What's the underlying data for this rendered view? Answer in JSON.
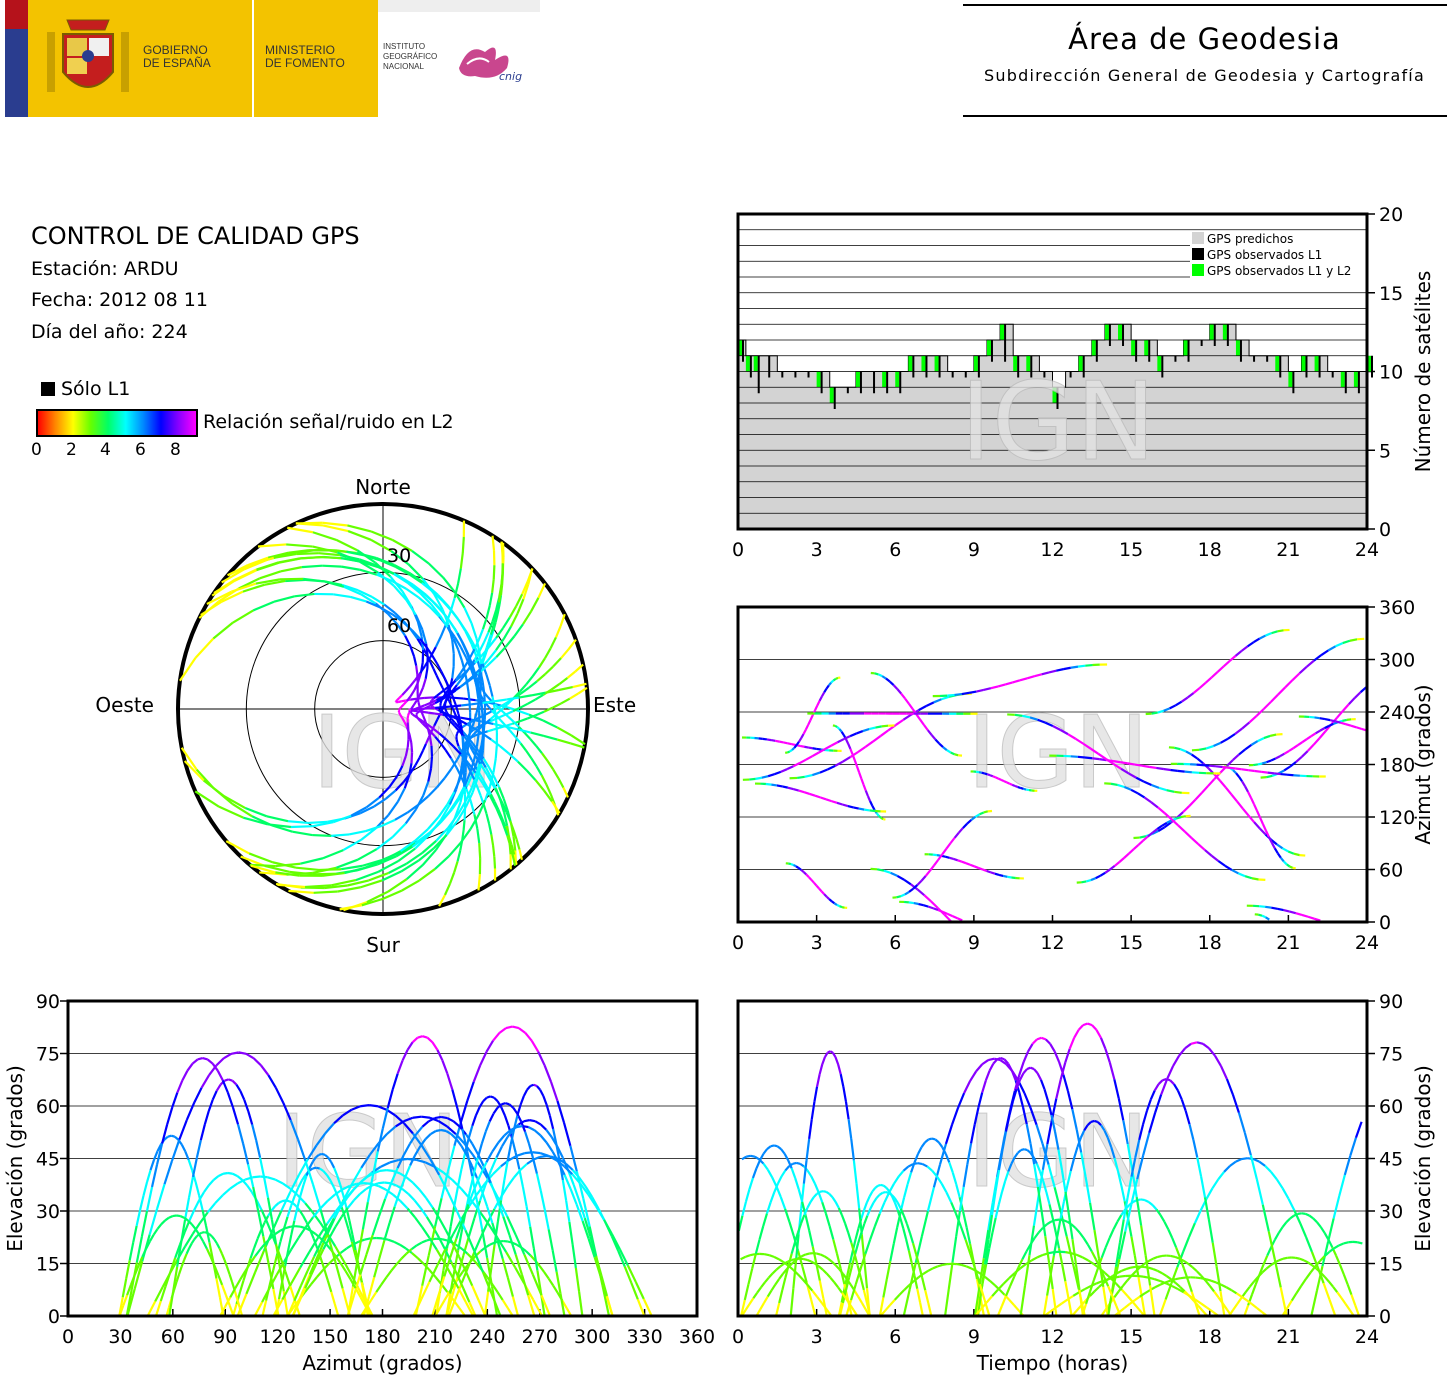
{
  "header": {
    "gov_line1": "GOBIERNO",
    "gov_line2": "DE ESPAÑA",
    "min_line1": "MINISTERIO",
    "min_line2": "DE FOMENTO",
    "inst_line1": "INSTITUTO",
    "inst_line2": "GEOGRÁFICO",
    "inst_line3": "NACIONAL",
    "cnig": "cnig",
    "title": "Área de Geodesia",
    "subtitle": "Subdirección General de Geodesia y Cartografía"
  },
  "info": {
    "title": "CONTROL DE CALIDAD GPS",
    "station": "Estación: ARDU",
    "date": "Fecha: 2012 08 11",
    "doy": "Día del año: 224",
    "solo_l1": "Sólo L1",
    "snr_label": "Relación señal/ruido en L2",
    "scale_ticks": [
      "0",
      "2",
      "4",
      "6",
      "8"
    ]
  },
  "colors": {
    "predicted": "#d3d3d3",
    "observed_l1": "#000000",
    "observed_l1_l2": "#00ff00",
    "snr_scale": [
      "#ff0000",
      "#ff8800",
      "#ffff00",
      "#66ff00",
      "#00ff66",
      "#00ffff",
      "#0088ff",
      "#0000ff",
      "#8800ff",
      "#ff00ff"
    ]
  },
  "watermark": "IGN",
  "chart_data": [
    {
      "type": "area",
      "id": "satellite_count",
      "xlabel": "",
      "ylabel": "Número de satélites",
      "xlim": [
        0,
        24
      ],
      "ylim": [
        0,
        20
      ],
      "xticks": [
        "0",
        "3",
        "6",
        "9",
        "12",
        "15",
        "18",
        "21",
        "24"
      ],
      "yticks": [
        "0",
        "5",
        "10",
        "15",
        "20"
      ],
      "legend": [
        "GPS predichos",
        "GPS observados L1",
        "GPS observados L1 y L2"
      ],
      "legend_position": "top-right",
      "x": [
        0,
        0.3,
        0.6,
        1.0,
        1.5,
        2.0,
        2.5,
        3.0,
        3.5,
        4.0,
        4.5,
        5.0,
        5.5,
        6.0,
        6.5,
        7.0,
        7.5,
        8.0,
        8.5,
        9.0,
        9.5,
        10.0,
        10.5,
        11.0,
        11.5,
        12.0,
        12.5,
        13.0,
        13.5,
        14.0,
        14.5,
        15.0,
        15.5,
        16.0,
        16.5,
        17.0,
        17.5,
        18.0,
        18.5,
        19.0,
        19.5,
        20.0,
        20.5,
        21.0,
        21.5,
        22.0,
        22.5,
        23.0,
        23.5,
        24.0
      ],
      "series": [
        {
          "name": "GPS predichos",
          "values": [
            12,
            11,
            11,
            11,
            10,
            10,
            10,
            10,
            9,
            9,
            10,
            10,
            10,
            10,
            11,
            11,
            11,
            10,
            10,
            11,
            12,
            13,
            11,
            11,
            10,
            9,
            10,
            11,
            12,
            13,
            13,
            12,
            12,
            11,
            11,
            12,
            12,
            13,
            13,
            12,
            11,
            11,
            11,
            10,
            11,
            11,
            10,
            10,
            10,
            11
          ]
        },
        {
          "name": "GPS observados L1",
          "values": [
            11,
            10,
            10,
            11,
            10,
            10,
            10,
            9,
            8,
            9,
            9,
            10,
            9,
            9,
            10,
            10,
            10,
            10,
            10,
            10,
            11,
            12,
            10,
            10,
            10,
            8,
            10,
            10,
            11,
            12,
            12,
            11,
            11,
            10,
            11,
            11,
            12,
            12,
            12,
            11,
            11,
            11,
            10,
            9,
            10,
            10,
            10,
            9,
            9,
            10
          ]
        },
        {
          "name": "GPS observados L1 y L2",
          "values": [
            11,
            10,
            9,
            10,
            10,
            10,
            10,
            9,
            8,
            9,
            9,
            9,
            9,
            9,
            10,
            10,
            10,
            10,
            10,
            10,
            11,
            11,
            10,
            10,
            10,
            8,
            10,
            10,
            11,
            12,
            12,
            11,
            11,
            10,
            11,
            11,
            12,
            12,
            12,
            11,
            11,
            11,
            10,
            9,
            10,
            10,
            10,
            9,
            9,
            10
          ]
        }
      ]
    },
    {
      "type": "scatter",
      "id": "skyplot",
      "labels": {
        "north": "Norte",
        "south": "Sur",
        "east": "Este",
        "west": "Oeste"
      },
      "elevation_rings": [
        "30",
        "60"
      ],
      "note_tracks": "satellite tracks colored by L2 SNR"
    },
    {
      "type": "scatter",
      "id": "azimuth_vs_time",
      "ylabel": "Azimut (grados)",
      "xlim": [
        0,
        24
      ],
      "ylim": [
        0,
        360
      ],
      "xticks": [
        "0",
        "3",
        "6",
        "9",
        "12",
        "15",
        "18",
        "21",
        "24"
      ],
      "yticks": [
        "0",
        "60",
        "120",
        "180",
        "240",
        "300",
        "360"
      ]
    },
    {
      "type": "scatter",
      "id": "elevation_vs_azimuth",
      "xlabel": "Azimut (grados)",
      "ylabel": "Elevación (grados)",
      "xlim": [
        0,
        360
      ],
      "ylim": [
        0,
        90
      ],
      "xticks": [
        "0",
        "30",
        "60",
        "90",
        "120",
        "150",
        "180",
        "210",
        "240",
        "270",
        "300",
        "330",
        "360"
      ],
      "yticks": [
        "0",
        "15",
        "30",
        "45",
        "60",
        "75",
        "90"
      ]
    },
    {
      "type": "line",
      "id": "elevation_vs_time",
      "xlabel": "Tiempo (horas)",
      "ylabel": "Elevación (grados)",
      "xlim": [
        0,
        24
      ],
      "ylim": [
        0,
        90
      ],
      "xticks": [
        "0",
        "3",
        "6",
        "9",
        "12",
        "15",
        "18",
        "21",
        "24"
      ],
      "yticks": [
        "0",
        "15",
        "30",
        "45",
        "60",
        "75",
        "90"
      ]
    }
  ]
}
